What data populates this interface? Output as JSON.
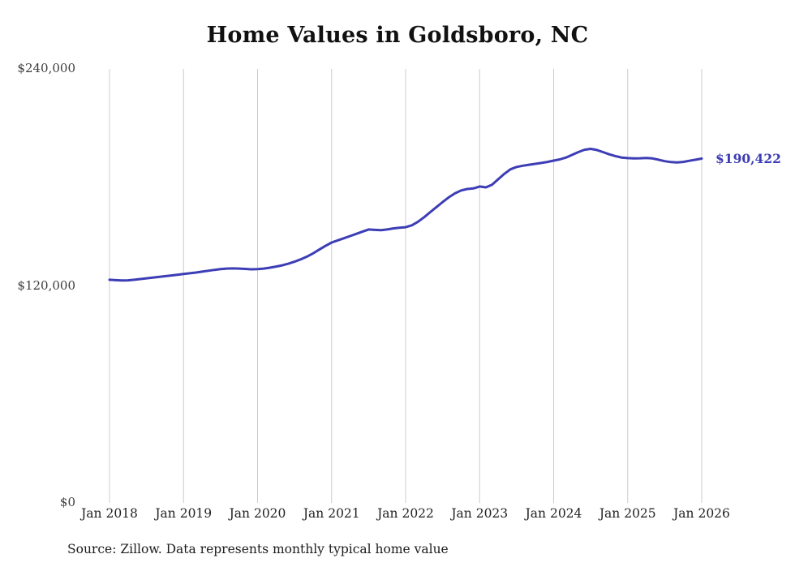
{
  "chart": {
    "title": "Home Values in Goldsboro, NC",
    "source": "Source: Zillow. Data represents monthly typical home value",
    "end_label": "$190,422"
  },
  "chart_data": {
    "type": "line",
    "title": "Home Values in Goldsboro, NC",
    "xlabel": "",
    "ylabel": "",
    "ylim": [
      0,
      240000
    ],
    "grid": "vertical-only",
    "legend": "none",
    "line_color": "#3d3db6",
    "grid_color": "#cccccc",
    "interval": "monthly",
    "x_start": "Jan 2018",
    "x_end": "Jan 2026",
    "x_tick_labels": [
      "Jan 2018",
      "Jan 2019",
      "Jan 2020",
      "Jan 2021",
      "Jan 2022",
      "Jan 2023",
      "Jan 2024",
      "Jan 2025",
      "Jan 2026"
    ],
    "y_ticks": [
      {
        "label": "$0",
        "value": 0
      },
      {
        "label": "$120,000",
        "value": 120000
      },
      {
        "label": "$240,000",
        "value": 240000
      }
    ],
    "series": [
      {
        "name": "Typical home value",
        "final_value": 190422,
        "values": [
          123400,
          123200,
          123000,
          123100,
          123400,
          123800,
          124200,
          124600,
          125000,
          125400,
          125800,
          126200,
          126600,
          127000,
          127400,
          127900,
          128400,
          128900,
          129300,
          129600,
          129700,
          129600,
          129400,
          129200,
          129300,
          129600,
          130100,
          130700,
          131400,
          132300,
          133400,
          134700,
          136200,
          138000,
          140100,
          142100,
          144000,
          145200,
          146400,
          147600,
          148800,
          150000,
          151200,
          151000,
          150800,
          151200,
          151800,
          152200,
          152500,
          153500,
          155500,
          158000,
          160800,
          163600,
          166400,
          169000,
          171200,
          172800,
          173600,
          173900,
          175000,
          174500,
          176000,
          179000,
          182000,
          184500,
          185800,
          186500,
          187000,
          187500,
          188000,
          188600,
          189300,
          190000,
          191000,
          192500,
          194000,
          195300,
          195800,
          195200,
          194000,
          192800,
          191800,
          191000,
          190700,
          190500,
          190600,
          190800,
          190500,
          189800,
          189000,
          188500,
          188300,
          188600,
          189200,
          189800,
          190422
        ]
      }
    ]
  }
}
